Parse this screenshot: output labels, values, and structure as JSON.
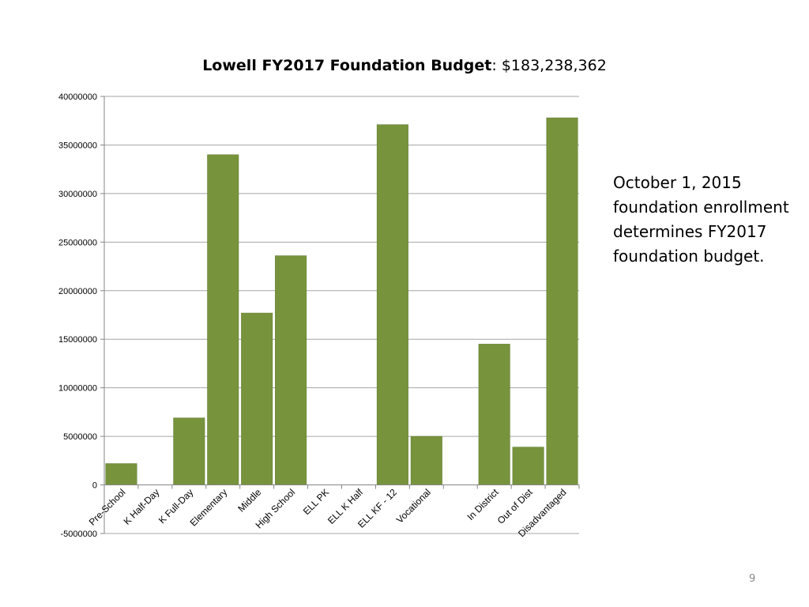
{
  "slide": {
    "note": "October 1, 2015 foundation enrollment determines FY2017 foundation budget.",
    "page_number": "9"
  },
  "colors": {
    "bar": "#77933C",
    "bar_edge": "#5f7a2e",
    "gridline": "#a6a6a6",
    "axis": "#868686"
  },
  "chart_data": {
    "type": "bar",
    "title_bold": "Lowell FY2017 Foundation Budget",
    "title_rest": ": $183,238,362",
    "xlabel": "",
    "ylabel": "",
    "ylim": [
      -5000000,
      40000000
    ],
    "ytick_step": 5000000,
    "yticks": [
      "40000000",
      "35000000",
      "30000000",
      "25000000",
      "20000000",
      "15000000",
      "10000000",
      "5000000",
      "0",
      "-5000000"
    ],
    "grid": true,
    "legend": "none",
    "categories": [
      "Pre-School",
      "K Half-Day",
      "K Full-Day",
      "Elementary",
      "Middle",
      "High School",
      "ELL PK",
      "ELL K Half",
      "ELL KF - 12",
      "Vocational",
      "",
      "In District",
      "Out of Dist",
      "Disadvantaged"
    ],
    "values": [
      2200000,
      0,
      6900000,
      34000000,
      17700000,
      23600000,
      0,
      0,
      37100000,
      5000000,
      0,
      14500000,
      3900000,
      37800000
    ]
  }
}
